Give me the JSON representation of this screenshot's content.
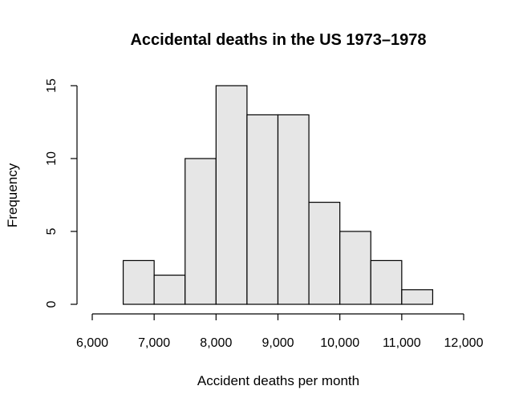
{
  "chart_data": {
    "type": "bar",
    "title": "Accidental deaths in the US 1973–1978",
    "xlabel": "Accident deaths per month",
    "ylabel": "Frequency",
    "bins": [
      {
        "x0": 6500,
        "x1": 7000,
        "count": 3
      },
      {
        "x0": 7000,
        "x1": 7500,
        "count": 2
      },
      {
        "x0": 7500,
        "x1": 8000,
        "count": 10
      },
      {
        "x0": 8000,
        "x1": 8500,
        "count": 15
      },
      {
        "x0": 8500,
        "x1": 9000,
        "count": 13
      },
      {
        "x0": 9000,
        "x1": 9500,
        "count": 13
      },
      {
        "x0": 9500,
        "x1": 10000,
        "count": 7
      },
      {
        "x0": 10000,
        "x1": 10500,
        "count": 5
      },
      {
        "x0": 10500,
        "x1": 11000,
        "count": 3
      },
      {
        "x0": 11000,
        "x1": 11500,
        "count": 1
      }
    ],
    "xlim": [
      6000,
      12000
    ],
    "ylim": [
      0,
      15
    ],
    "xticks": [
      6000,
      7000,
      8000,
      9000,
      10000,
      11000,
      12000
    ],
    "xtick_labels": [
      "6,000",
      "7,000",
      "8,000",
      "9,000",
      "10,000",
      "11,000",
      "12,000"
    ],
    "yticks": [
      0,
      5,
      10,
      15
    ],
    "ytick_labels": [
      "0",
      "5",
      "10",
      "15"
    ],
    "bar_color": "#e6e6e6",
    "edge_color": "#000000",
    "grid": false
  }
}
